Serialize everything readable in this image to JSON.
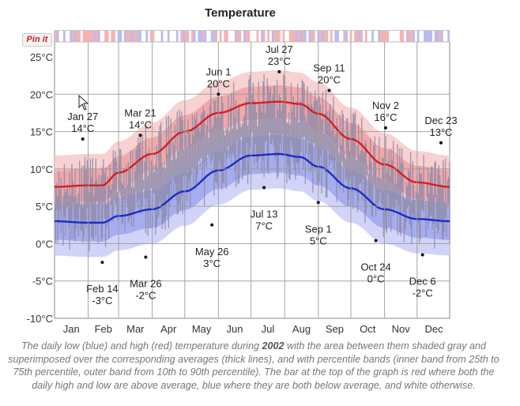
{
  "title": "Temperature",
  "pin_label": "Pin it",
  "caption": {
    "before": "The daily low (blue) and high (red) temperature during ",
    "year": "2002",
    "after": " with the area between them shaded gray and superimposed over the corresponding averages (thick lines), and with percentile bands (inner band from 25th to 75th percentile, outer band from 10th to 90th percentile). The bar at the top of the graph is red where both the daily high and low are above average, blue where they are both below average, and white otherwise."
  },
  "colors": {
    "high": "#d42020",
    "low": "#1a2cc8",
    "high_band_outer": "#f7c9c9",
    "high_band_inner": "#eea1a1",
    "low_band_outer": "#c9ccf7",
    "low_band_inner": "#9fa6ec",
    "daily_bars": "#8d8aa8",
    "grid": "#9a9a9a"
  },
  "chart_data": {
    "type": "line",
    "title": "Temperature",
    "ylim": [
      -10,
      25
    ],
    "y_ticks": [
      "25°C",
      "20°C",
      "15°C",
      "10°C",
      "5°C",
      "0°C",
      "-5°C",
      "-10°C"
    ],
    "y_tick_values": [
      25,
      20,
      15,
      10,
      5,
      0,
      -5,
      -10
    ],
    "x_ticks": [
      "Jan",
      "Feb",
      "Mar",
      "Apr",
      "May",
      "Jun",
      "Jul",
      "Aug",
      "Sep",
      "Oct",
      "Nov",
      "Dec"
    ],
    "grid": true,
    "avg_high": {
      "x": [
        "Jan 1",
        "Feb 1",
        "Feb 14",
        "Mar 1",
        "Apr 1",
        "May 1",
        "Jun 1",
        "Jul 1",
        "Jul 27",
        "Aug 15",
        "Sep 1",
        "Oct 1",
        "Nov 1",
        "Dec 1",
        "Dec 31"
      ],
      "day": [
        1,
        32,
        45,
        60,
        91,
        121,
        152,
        182,
        208,
        227,
        244,
        274,
        305,
        335,
        365
      ],
      "values": [
        7.6,
        7.8,
        7.8,
        9.5,
        12.0,
        15.0,
        17.5,
        18.8,
        19.0,
        18.7,
        17.4,
        14.0,
        10.6,
        8.2,
        7.6
      ]
    },
    "avg_low": {
      "x": [
        "Jan 1",
        "Feb 1",
        "Feb 14",
        "Mar 1",
        "Apr 1",
        "May 1",
        "Jun 1",
        "Jul 1",
        "Jul 27",
        "Aug 15",
        "Sep 1",
        "Oct 1",
        "Nov 1",
        "Dec 1",
        "Dec 31"
      ],
      "day": [
        1,
        32,
        45,
        60,
        91,
        121,
        152,
        182,
        208,
        227,
        244,
        274,
        305,
        335,
        365
      ],
      "values": [
        3.0,
        2.8,
        2.8,
        3.7,
        4.6,
        7.0,
        9.8,
        11.8,
        12.0,
        11.6,
        10.3,
        7.4,
        4.6,
        3.3,
        3.0
      ]
    },
    "band_widths": {
      "high_inner": 2.2,
      "high_outer": 4.2,
      "low_inner": 2.5,
      "low_outer": 4.6
    },
    "annotations": [
      {
        "date": "Jan 27",
        "value": "14°C",
        "day": 27,
        "y": 14,
        "pos": "above"
      },
      {
        "date": "Feb 14",
        "value": "-3°C",
        "day": 45,
        "y": -2.5,
        "pos": "below"
      },
      {
        "date": "Mar 21",
        "value": "14°C",
        "day": 80,
        "y": 14.5,
        "pos": "above"
      },
      {
        "date": "Mar 26",
        "value": "-2°C",
        "day": 85,
        "y": -1.8,
        "pos": "below"
      },
      {
        "date": "May 26",
        "value": "3°C",
        "day": 146,
        "y": 2.5,
        "pos": "below"
      },
      {
        "date": "Jun 1",
        "value": "20°C",
        "day": 152,
        "y": 20,
        "pos": "above"
      },
      {
        "date": "Jul 13",
        "value": "7°C",
        "day": 194,
        "y": 7.5,
        "pos": "below"
      },
      {
        "date": "Jul 27",
        "value": "23°C",
        "day": 208,
        "y": 23,
        "pos": "above"
      },
      {
        "date": "Sep 1",
        "value": "5°C",
        "day": 244,
        "y": 5.5,
        "pos": "below"
      },
      {
        "date": "Sep 11",
        "value": "20°C",
        "day": 254,
        "y": 20.5,
        "pos": "above"
      },
      {
        "date": "Oct 24",
        "value": "0°C",
        "day": 297,
        "y": 0.4,
        "pos": "below"
      },
      {
        "date": "Nov 2",
        "value": "16°C",
        "day": 306,
        "y": 15.5,
        "pos": "above"
      },
      {
        "date": "Dec 6",
        "value": "-2°C",
        "day": 340,
        "y": -1.5,
        "pos": "below"
      },
      {
        "date": "Dec 23",
        "value": "13°C",
        "day": 357,
        "y": 13.5,
        "pos": "above"
      }
    ]
  }
}
